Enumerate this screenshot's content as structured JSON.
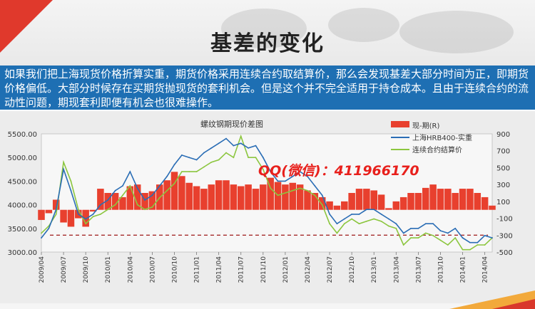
{
  "slide": {
    "title": "基差的变化",
    "paragraph": "如果我们把上海现货价格折算实重，期货价格采用连续合约取结算价，那么会发现基差大部分时间为正，即期货价格偏低。大部分时候存在买期货抛现货的套利机会。但是这个并不完全适用于持仓成本。且由于连续合约的流动性问题，期现套利即便有机会也很难操作。"
  },
  "watermark": "QQ(微信)：411966170",
  "colors": {
    "title_bar": "#1e6fb3",
    "basis_fill": "#e8402e",
    "spot_line": "#2a6db5",
    "futures_line": "#8cc63f",
    "ref_line": "#a52a2a",
    "watermark": "#e8201c"
  },
  "chart_data": {
    "type": "line",
    "title": "螺纹钢期现价差图",
    "left_axis": {
      "ticks": [
        "5500.00",
        "5000.00",
        "4500.00",
        "4000.00",
        "3500.00",
        "3000.00"
      ],
      "ylim": [
        3000,
        5500
      ]
    },
    "right_axis": {
      "ticks": [
        "900",
        "700",
        "500",
        "300",
        "100",
        "-100",
        "-300",
        "-500"
      ],
      "ylim": [
        -500,
        900
      ]
    },
    "x_ticks": [
      "2009/04",
      "2009/07",
      "2009/10",
      "2010/01",
      "2010/04",
      "2010/07",
      "2010/10",
      "2011/01",
      "2011/04",
      "2011/07",
      "2011/10",
      "2012/01",
      "2012/04",
      "2012/07",
      "2012/10",
      "2013/01",
      "2013/04",
      "2013/07",
      "2013/10",
      "2014/01",
      "2014/04"
    ],
    "reference_line": {
      "axis": "right",
      "value": -300
    },
    "legend_position": "top-right",
    "series": [
      {
        "name": "现-期(R)",
        "kind": "area",
        "axis": "right",
        "x": [
          "2009/04",
          "2009/05",
          "2009/06",
          "2009/07",
          "2009/08",
          "2009/09",
          "2009/10",
          "2009/11",
          "2009/12",
          "2010/01",
          "2010/02",
          "2010/03",
          "2010/04",
          "2010/05",
          "2010/06",
          "2010/07",
          "2010/08",
          "2010/09",
          "2010/10",
          "2010/11",
          "2010/12",
          "2011/01",
          "2011/02",
          "2011/03",
          "2011/04",
          "2011/05",
          "2011/06",
          "2011/07",
          "2011/08",
          "2011/09",
          "2011/10",
          "2011/11",
          "2011/12",
          "2012/01",
          "2012/02",
          "2012/03",
          "2012/04",
          "2012/05",
          "2012/06",
          "2012/07",
          "2012/08",
          "2012/09",
          "2012/10",
          "2012/11",
          "2012/12",
          "2013/01",
          "2013/02",
          "2013/03",
          "2013/04",
          "2013/05",
          "2013/06",
          "2013/07",
          "2013/08",
          "2013/09",
          "2013/10",
          "2013/11",
          "2013/12",
          "2014/01",
          "2014/02",
          "2014/03",
          "2014/04",
          "2014/05"
        ],
        "values": [
          -120,
          -40,
          120,
          -150,
          -200,
          -100,
          -200,
          -20,
          250,
          200,
          200,
          150,
          280,
          300,
          200,
          220,
          300,
          350,
          450,
          400,
          320,
          280,
          250,
          300,
          350,
          350,
          300,
          280,
          300,
          250,
          300,
          380,
          330,
          300,
          320,
          300,
          230,
          200,
          150,
          100,
          50,
          100,
          200,
          250,
          250,
          230,
          180,
          20,
          100,
          150,
          200,
          200,
          260,
          300,
          250,
          250,
          200,
          250,
          250,
          200,
          150,
          50
        ]
      },
      {
        "name": "上海HRB400-实重",
        "kind": "line",
        "axis": "left",
        "x": [
          "2009/04",
          "2009/05",
          "2009/06",
          "2009/07",
          "2009/08",
          "2009/09",
          "2009/10",
          "2009/11",
          "2009/12",
          "2010/01",
          "2010/02",
          "2010/03",
          "2010/04",
          "2010/05",
          "2010/06",
          "2010/07",
          "2010/08",
          "2010/09",
          "2010/10",
          "2010/11",
          "2010/12",
          "2011/01",
          "2011/02",
          "2011/03",
          "2011/04",
          "2011/05",
          "2011/06",
          "2011/07",
          "2011/08",
          "2011/09",
          "2011/10",
          "2011/11",
          "2011/12",
          "2012/01",
          "2012/02",
          "2012/03",
          "2012/04",
          "2012/05",
          "2012/06",
          "2012/07",
          "2012/08",
          "2012/09",
          "2012/10",
          "2012/11",
          "2012/12",
          "2013/01",
          "2013/02",
          "2013/03",
          "2013/04",
          "2013/05",
          "2013/06",
          "2013/07",
          "2013/08",
          "2013/09",
          "2013/10",
          "2013/11",
          "2013/12",
          "2014/01",
          "2014/02",
          "2014/03",
          "2014/04",
          "2014/05"
        ],
        "values": [
          3300,
          3500,
          3900,
          4750,
          4300,
          3800,
          3700,
          3800,
          4000,
          4100,
          4300,
          4400,
          4700,
          4350,
          4100,
          4200,
          4400,
          4600,
          4850,
          5050,
          5000,
          4950,
          5100,
          5200,
          5300,
          5400,
          5250,
          5300,
          5200,
          5250,
          5000,
          4700,
          4500,
          4500,
          4600,
          4700,
          4600,
          4400,
          4200,
          3800,
          3600,
          3700,
          3800,
          3800,
          3900,
          3900,
          3800,
          3700,
          3600,
          3400,
          3500,
          3500,
          3600,
          3600,
          3450,
          3400,
          3500,
          3300,
          3200,
          3200,
          3350,
          3300
        ]
      },
      {
        "name": "连续合约结算价",
        "kind": "line",
        "axis": "left",
        "x": [
          "2009/04",
          "2009/05",
          "2009/06",
          "2009/07",
          "2009/08",
          "2009/09",
          "2009/10",
          "2009/11",
          "2009/12",
          "2010/01",
          "2010/02",
          "2010/03",
          "2010/04",
          "2010/05",
          "2010/06",
          "2010/07",
          "2010/08",
          "2010/09",
          "2010/10",
          "2010/11",
          "2010/12",
          "2011/01",
          "2011/02",
          "2011/03",
          "2011/04",
          "2011/05",
          "2011/06",
          "2011/07",
          "2011/08",
          "2011/09",
          "2011/10",
          "2011/11",
          "2011/12",
          "2012/01",
          "2012/02",
          "2012/03",
          "2012/04",
          "2012/05",
          "2012/06",
          "2012/07",
          "2012/08",
          "2012/09",
          "2012/10",
          "2012/11",
          "2012/12",
          "2013/01",
          "2013/02",
          "2013/03",
          "2013/04",
          "2013/05",
          "2013/06",
          "2013/07",
          "2013/08",
          "2013/09",
          "2013/10",
          "2013/11",
          "2013/12",
          "2014/01",
          "2014/02",
          "2014/03",
          "2014/04",
          "2014/05"
        ],
        "values": [
          3400,
          3550,
          3800,
          4900,
          4500,
          3900,
          3600,
          3750,
          3800,
          3900,
          4000,
          4200,
          4400,
          4000,
          3900,
          3950,
          4150,
          4300,
          4450,
          4700,
          4700,
          4700,
          4800,
          4900,
          4950,
          5100,
          5000,
          5450,
          5000,
          5000,
          4750,
          4350,
          4200,
          4250,
          4300,
          4350,
          4300,
          4200,
          4000,
          3600,
          3400,
          3600,
          3700,
          3600,
          3650,
          3700,
          3650,
          3550,
          3500,
          3150,
          3300,
          3300,
          3400,
          3350,
          3250,
          3150,
          3300,
          3050,
          3050,
          3150,
          3150,
          3300
        ]
      }
    ]
  }
}
